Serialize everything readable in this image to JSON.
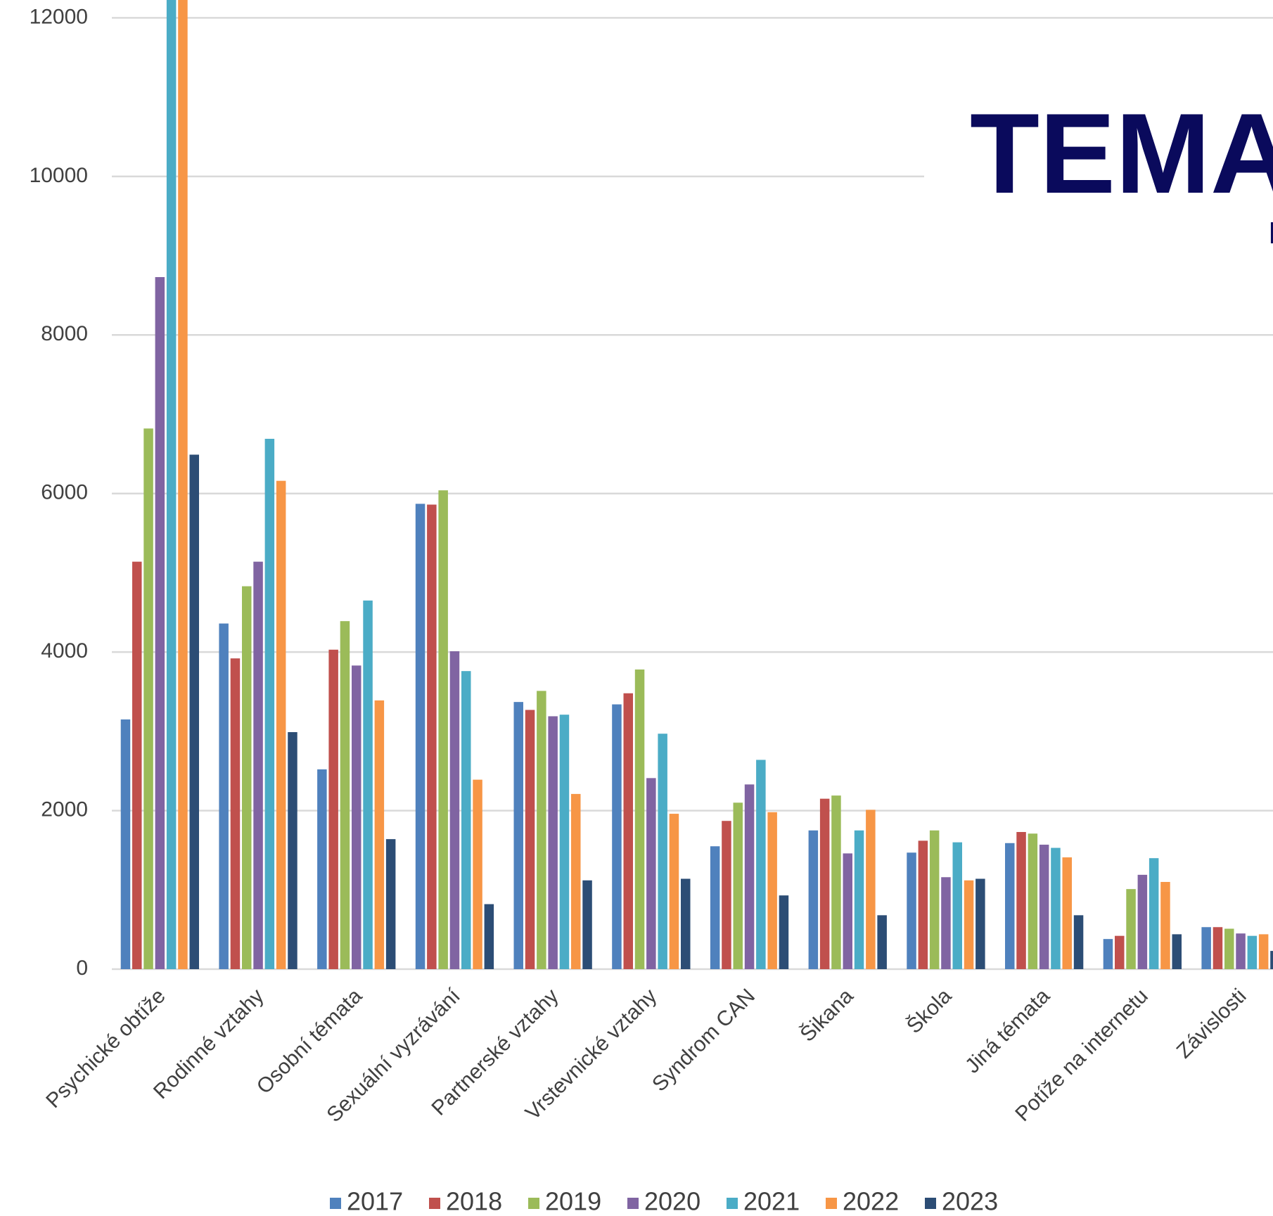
{
  "chart_data": {
    "type": "bar",
    "title": "TEMA",
    "subtitle": "I",
    "categories": [
      "Psychické obtíže",
      "Rodinné vztahy",
      "Osobní témata",
      "Sexuální vyzrávání",
      "Partnerské vztahy",
      "Vrstevnické vztahy",
      "Syndrom CAN",
      "Šikana",
      "Škola",
      "Jiná témata",
      "Potíže na internetu",
      "Závislosti"
    ],
    "series": [
      {
        "name": "2017",
        "color": "#4f81bd",
        "values": [
          3150,
          4360,
          2520,
          5870,
          3370,
          3340,
          1550,
          1750,
          1470,
          1590,
          380,
          530
        ]
      },
      {
        "name": "2018",
        "color": "#c0504d",
        "values": [
          5140,
          3920,
          4030,
          5860,
          3270,
          3480,
          1870,
          2150,
          1620,
          1730,
          420,
          530
        ]
      },
      {
        "name": "2019",
        "color": "#9bbb59",
        "values": [
          6820,
          4830,
          4390,
          6040,
          3510,
          3780,
          2100,
          2190,
          1750,
          1710,
          1010,
          510
        ]
      },
      {
        "name": "2020",
        "color": "#8064a2",
        "values": [
          8730,
          5140,
          3830,
          4010,
          3190,
          2410,
          2330,
          1460,
          1160,
          1570,
          1190,
          450
        ]
      },
      {
        "name": "2021",
        "color": "#4bacc6",
        "values": [
          12600,
          6690,
          4650,
          3760,
          3210,
          2970,
          2640,
          1750,
          1600,
          1530,
          1400,
          420
        ]
      },
      {
        "name": "2022",
        "color": "#f79646",
        "values": [
          12500,
          6160,
          3390,
          2390,
          2210,
          1960,
          1980,
          2010,
          1120,
          1410,
          1100,
          440
        ]
      },
      {
        "name": "2023",
        "color": "#2c4d75",
        "values": [
          6490,
          2990,
          1640,
          820,
          1120,
          1140,
          930,
          680,
          1140,
          680,
          440,
          230
        ]
      }
    ],
    "ylim": [
      0,
      12000
    ],
    "yticks": [
      0,
      2000,
      4000,
      6000,
      8000,
      10000,
      12000
    ],
    "grid": true,
    "legend": "bottom"
  }
}
